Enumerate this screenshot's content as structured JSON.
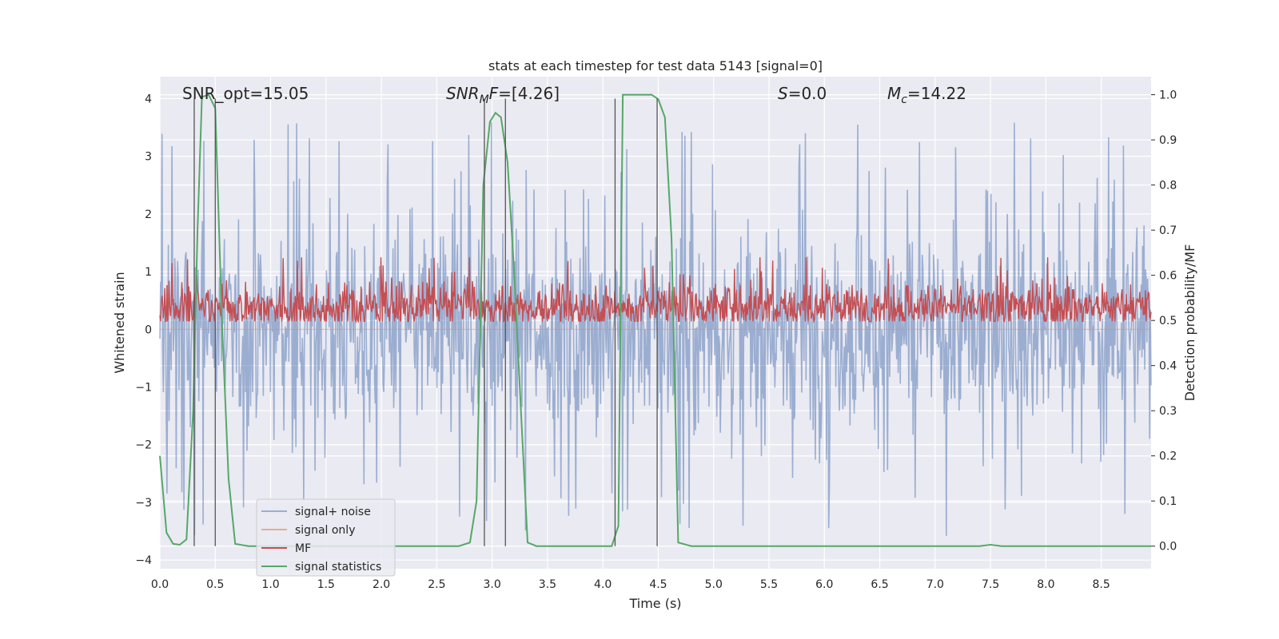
{
  "chart_data": {
    "type": "line",
    "title": "stats at each timestep for test data 5143 [signal=0]",
    "xlabel": "Time (s)",
    "ylabel_left": "Whitened strain",
    "ylabel_right": "Detection probability/MF",
    "xlim": [
      0.0,
      8.95
    ],
    "ylim_left": [
      -4.15,
      4.38
    ],
    "ylim_right": [
      -0.05,
      1.04
    ],
    "xticks": [
      0.0,
      0.5,
      1.0,
      1.5,
      2.0,
      2.5,
      3.0,
      3.5,
      4.0,
      4.5,
      5.0,
      5.5,
      6.0,
      6.5,
      7.0,
      7.5,
      8.0,
      8.5
    ],
    "xtick_labels": [
      "0.0",
      "0.5",
      "1.0",
      "1.5",
      "2.0",
      "2.5",
      "3.0",
      "3.5",
      "4.0",
      "4.5",
      "5.0",
      "5.5",
      "6.0",
      "6.5",
      "7.0",
      "7.5",
      "8.0",
      "8.5"
    ],
    "yticks_left": [
      -4,
      -3,
      -2,
      -1,
      0,
      1,
      2,
      3,
      4
    ],
    "ytick_labels_left": [
      "−4",
      "−3",
      "−2",
      "−1",
      "0",
      "1",
      "2",
      "3",
      "4"
    ],
    "yticks_right": [
      0.0,
      0.1,
      0.2,
      0.3,
      0.4,
      0.5,
      0.6,
      0.7,
      0.8,
      0.9,
      1.0
    ],
    "ytick_labels_right": [
      "0.0",
      "0.1",
      "0.2",
      "0.3",
      "0.4",
      "0.5",
      "0.6",
      "0.7",
      "0.8",
      "0.9",
      "1.0"
    ],
    "grid": true,
    "legend_placement": "lower-left",
    "annotations": {
      "snr_opt": "SNR_opt=15.05",
      "snr_mf_sym": "SNR",
      "snr_mf_sub": "M",
      "snr_mf_tail": "F",
      "snr_mf_val": "=[4.26]",
      "s_sym": "S",
      "s_val": "=0.0",
      "mc_sym": "M",
      "mc_sub": "c",
      "mc_val": "=14.22"
    },
    "vertical_lines": [
      0.31,
      0.5,
      2.93,
      3.12,
      4.11,
      4.49
    ],
    "series": [
      {
        "name": "signal+ noise",
        "color": "#4c72b0",
        "axis": "left",
        "kind": "noise",
        "amplitude": 1.45,
        "spike_max": 3.6
      },
      {
        "name": "signal only",
        "color": "#dd8452",
        "axis": "left",
        "kind": "flat",
        "value": 0.0
      },
      {
        "name": "MF",
        "color": "#c44e52",
        "axis": "right",
        "kind": "noise",
        "baseline": 0.53,
        "amplitude": 0.035,
        "spike_max": 0.12
      },
      {
        "name": "signal statistics",
        "color": "#55a868",
        "axis": "right",
        "x": [
          0.0,
          0.06,
          0.12,
          0.18,
          0.24,
          0.3,
          0.34,
          0.38,
          0.44,
          0.5,
          0.56,
          0.62,
          0.68,
          0.8,
          1.5,
          2.0,
          2.5,
          2.7,
          2.8,
          2.86,
          2.92,
          2.98,
          3.03,
          3.08,
          3.14,
          3.2,
          3.26,
          3.32,
          3.4,
          3.6,
          4.0,
          4.08,
          4.14,
          4.18,
          4.3,
          4.44,
          4.5,
          4.56,
          4.62,
          4.68,
          4.8,
          7.2,
          7.4,
          7.5,
          7.6,
          8.95
        ],
        "y": [
          0.2,
          0.03,
          0.005,
          0.003,
          0.015,
          0.3,
          0.7,
          0.995,
          1.0,
          0.97,
          0.5,
          0.15,
          0.005,
          0.0,
          0.0,
          0.0,
          0.0,
          0.0,
          0.008,
          0.1,
          0.8,
          0.94,
          0.96,
          0.95,
          0.85,
          0.6,
          0.3,
          0.008,
          0.0,
          0.0,
          0.0,
          0.0,
          0.045,
          1.0,
          1.0,
          1.0,
          0.99,
          0.95,
          0.68,
          0.008,
          0.0,
          0.0,
          0.0,
          0.003,
          0.0,
          0.0
        ]
      }
    ]
  }
}
